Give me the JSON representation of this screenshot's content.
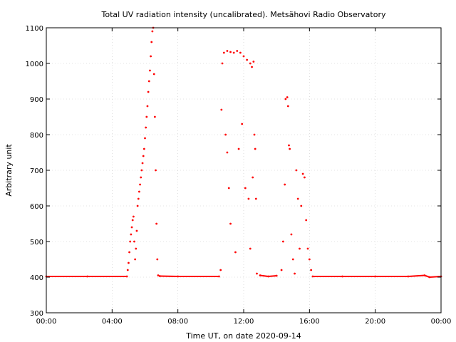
{
  "chart_data": {
    "type": "scatter",
    "title": "Total UV radiation intensity (uncalibrated). Metsähovi Radio Observatory",
    "xlabel": "Time UT, on date 2020-09-14",
    "ylabel": "Arbitrary unit",
    "xlim": [
      0,
      24
    ],
    "ylim": [
      300,
      1100
    ],
    "grid": true,
    "x_ticks": [
      {
        "value": 0,
        "label": "00:00"
      },
      {
        "value": 4,
        "label": "04:00"
      },
      {
        "value": 8,
        "label": "08:00"
      },
      {
        "value": 12,
        "label": "12:00"
      },
      {
        "value": 16,
        "label": "16:00"
      },
      {
        "value": 20,
        "label": "20:00"
      },
      {
        "value": 24,
        "label": "00:00"
      }
    ],
    "y_ticks": [
      {
        "value": 300,
        "label": "300"
      },
      {
        "value": 400,
        "label": "400"
      },
      {
        "value": 500,
        "label": "500"
      },
      {
        "value": 600,
        "label": "600"
      },
      {
        "value": 700,
        "label": "700"
      },
      {
        "value": 800,
        "label": "800"
      },
      {
        "value": 900,
        "label": "900"
      },
      {
        "value": 1000,
        "label": "1000"
      },
      {
        "value": 1100,
        "label": "1100"
      }
    ],
    "series": [
      {
        "color": "#ff0000",
        "points": [
          [
            0.0,
            402
          ],
          [
            2.5,
            402
          ],
          [
            4.9,
            402
          ],
          [
            4.95,
            420
          ],
          [
            5.0,
            440
          ],
          [
            5.05,
            470
          ],
          [
            5.1,
            500
          ],
          [
            5.15,
            520
          ],
          [
            5.2,
            540
          ],
          [
            5.25,
            560
          ],
          [
            5.3,
            570
          ],
          [
            5.35,
            500
          ],
          [
            5.4,
            450
          ],
          [
            5.45,
            480
          ],
          [
            5.5,
            530
          ],
          [
            5.55,
            600
          ],
          [
            5.6,
            620
          ],
          [
            5.65,
            640
          ],
          [
            5.7,
            660
          ],
          [
            5.75,
            680
          ],
          [
            5.8,
            700
          ],
          [
            5.85,
            720
          ],
          [
            5.9,
            740
          ],
          [
            5.95,
            760
          ],
          [
            6.0,
            790
          ],
          [
            6.05,
            820
          ],
          [
            6.1,
            850
          ],
          [
            6.15,
            880
          ],
          [
            6.2,
            920
          ],
          [
            6.25,
            950
          ],
          [
            6.3,
            980
          ],
          [
            6.35,
            1020
          ],
          [
            6.4,
            1060
          ],
          [
            6.45,
            1090
          ],
          [
            6.5,
            1100
          ],
          [
            6.55,
            970
          ],
          [
            6.6,
            850
          ],
          [
            6.65,
            700
          ],
          [
            6.7,
            550
          ],
          [
            6.75,
            450
          ],
          [
            6.8,
            405
          ],
          [
            6.9,
            403
          ],
          [
            8.0,
            402
          ],
          [
            10.5,
            402
          ],
          [
            10.6,
            420
          ],
          [
            10.65,
            870
          ],
          [
            10.7,
            1000
          ],
          [
            10.8,
            1030
          ],
          [
            11.0,
            1035
          ],
          [
            11.2,
            1032
          ],
          [
            11.4,
            1030
          ],
          [
            11.6,
            1035
          ],
          [
            11.8,
            1030
          ],
          [
            12.0,
            1020
          ],
          [
            12.2,
            1010
          ],
          [
            12.4,
            1000
          ],
          [
            12.5,
            990
          ],
          [
            12.6,
            1005
          ],
          [
            10.9,
            800
          ],
          [
            11.0,
            750
          ],
          [
            11.1,
            650
          ],
          [
            11.2,
            550
          ],
          [
            11.5,
            470
          ],
          [
            11.7,
            760
          ],
          [
            11.9,
            830
          ],
          [
            12.1,
            650
          ],
          [
            12.3,
            620
          ],
          [
            12.4,
            480
          ],
          [
            12.55,
            680
          ],
          [
            12.65,
            800
          ],
          [
            12.7,
            760
          ],
          [
            12.75,
            620
          ],
          [
            12.8,
            410
          ],
          [
            13.0,
            405
          ],
          [
            13.5,
            402
          ],
          [
            14.0,
            404
          ],
          [
            14.3,
            420
          ],
          [
            14.4,
            500
          ],
          [
            14.5,
            660
          ],
          [
            14.55,
            900
          ],
          [
            14.65,
            905
          ],
          [
            14.7,
            880
          ],
          [
            14.75,
            770
          ],
          [
            14.8,
            760
          ],
          [
            14.9,
            520
          ],
          [
            15.0,
            450
          ],
          [
            15.1,
            410
          ],
          [
            15.2,
            700
          ],
          [
            15.3,
            620
          ],
          [
            15.4,
            480
          ],
          [
            15.5,
            600
          ],
          [
            15.6,
            690
          ],
          [
            15.7,
            680
          ],
          [
            15.8,
            560
          ],
          [
            15.9,
            480
          ],
          [
            16.0,
            450
          ],
          [
            16.1,
            420
          ],
          [
            16.2,
            402
          ],
          [
            18.0,
            402
          ],
          [
            20.0,
            402
          ],
          [
            22.0,
            402
          ],
          [
            23.0,
            405
          ],
          [
            23.3,
            400
          ],
          [
            24.0,
            402
          ]
        ]
      }
    ]
  }
}
